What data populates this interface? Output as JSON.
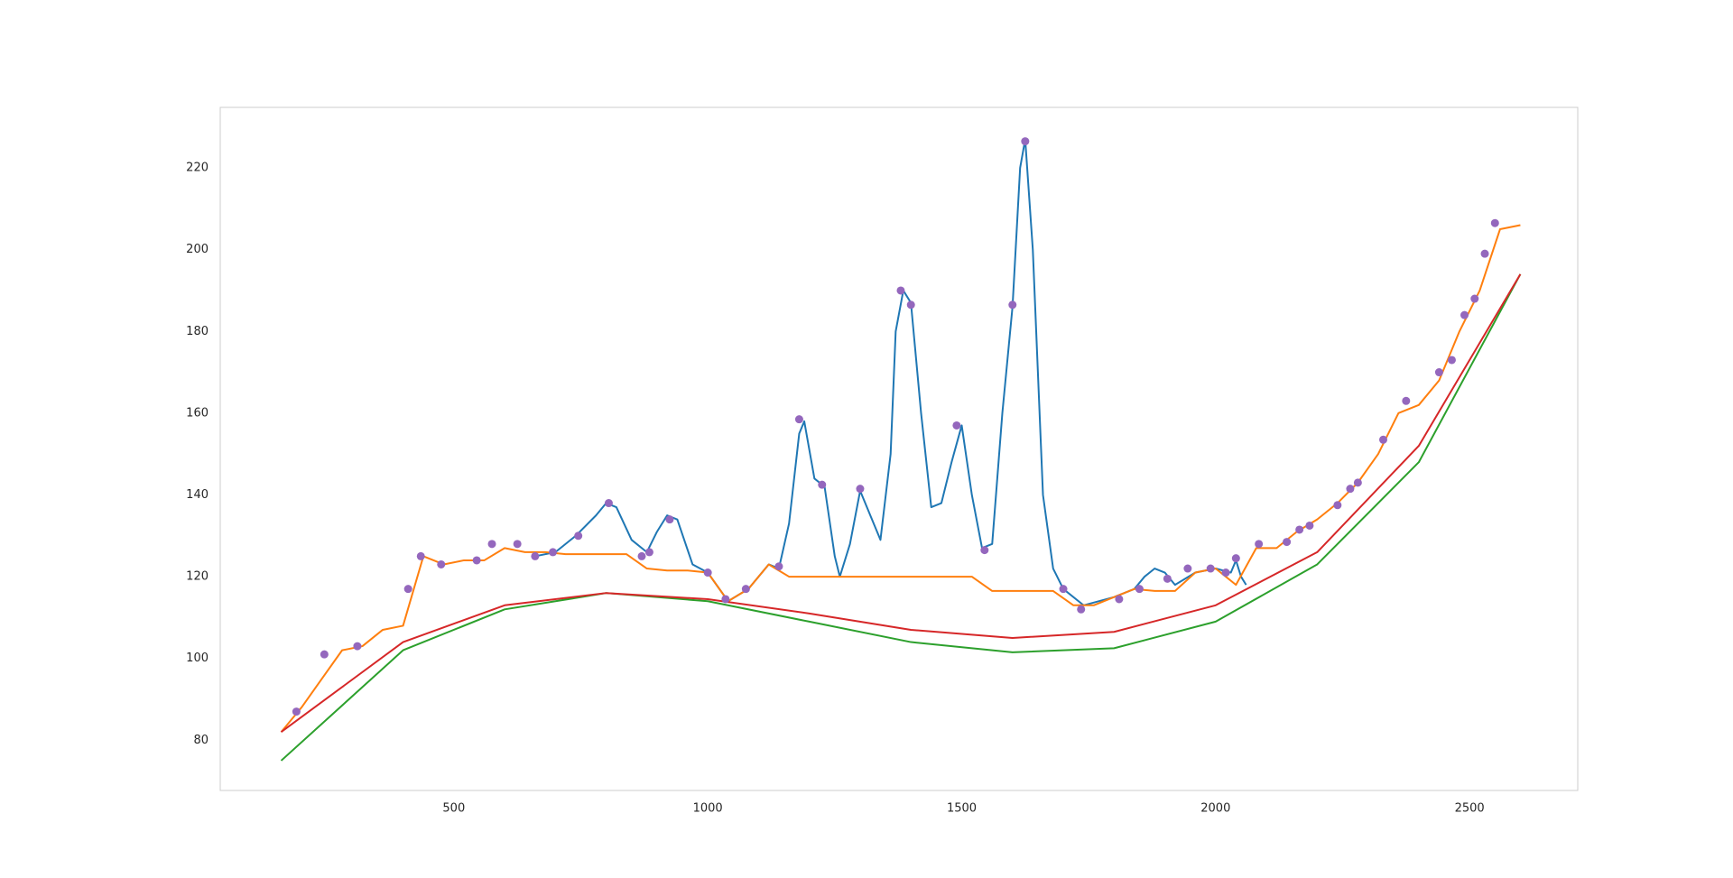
{
  "chart_data": {
    "type": "line",
    "xlim": [
      40,
      2713
    ],
    "ylim": [
      67.7,
      234.8
    ],
    "xticks": [
      500,
      1000,
      1500,
      2000,
      2500
    ],
    "yticks": [
      80,
      100,
      120,
      140,
      160,
      180,
      200,
      220
    ],
    "grid": false,
    "series": [
      {
        "color": "#1f77b4",
        "x": [
          660,
          700,
          740,
          780,
          800,
          820,
          850,
          880,
          900,
          920,
          940,
          970,
          1000,
          1040,
          1080,
          1120,
          1140,
          1160,
          1180,
          1190,
          1210,
          1230,
          1250,
          1260,
          1280,
          1300,
          1320,
          1340,
          1360,
          1370,
          1385,
          1400,
          1420,
          1440,
          1460,
          1480,
          1500,
          1520,
          1540,
          1560,
          1580,
          1600,
          1615,
          1625,
          1640,
          1660,
          1680,
          1700,
          1740,
          1800,
          1840,
          1860,
          1880,
          1900,
          1920,
          1960,
          2000,
          2030,
          2040,
          2050,
          2060
        ],
        "values": [
          125,
          126,
          130,
          135,
          138,
          137,
          129,
          126,
          131,
          135,
          134,
          123,
          121,
          114,
          117,
          123,
          122,
          133,
          155,
          158,
          144,
          142,
          125,
          120,
          128,
          141,
          135,
          129,
          150,
          180,
          190,
          187,
          160,
          137,
          138,
          148,
          157,
          140,
          127,
          128,
          160,
          186,
          220,
          227,
          200,
          140,
          122,
          117,
          113,
          115,
          117,
          120,
          122,
          121,
          118,
          121,
          122,
          121,
          124,
          120,
          118
        ]
      },
      {
        "color": "#ff7f0e",
        "x": [
          160,
          200,
          240,
          280,
          320,
          360,
          400,
          440,
          480,
          520,
          560,
          600,
          640,
          680,
          720,
          760,
          800,
          840,
          880,
          920,
          960,
          1000,
          1040,
          1080,
          1120,
          1160,
          1200,
          1240,
          1280,
          1320,
          1360,
          1400,
          1440,
          1480,
          1520,
          1560,
          1600,
          1640,
          1680,
          1720,
          1760,
          1800,
          1840,
          1880,
          1920,
          1960,
          2000,
          2040,
          2080,
          2120,
          2160,
          2200,
          2240,
          2280,
          2320,
          2360,
          2400,
          2440,
          2480,
          2520,
          2560,
          2600
        ],
        "values": [
          82,
          88,
          95,
          102,
          103,
          107,
          108,
          125,
          123,
          124,
          124,
          127,
          126,
          126,
          125.5,
          125.5,
          125.5,
          125.5,
          122,
          121.5,
          121.5,
          121,
          114,
          117,
          123,
          120,
          120,
          120,
          120,
          120,
          120,
          120,
          120,
          120,
          120,
          116.5,
          116.5,
          116.5,
          116.5,
          113,
          113,
          115,
          117,
          116.5,
          116.5,
          121,
          122,
          118,
          127,
          127,
          131,
          134,
          138,
          143,
          150,
          160,
          162,
          168,
          180,
          190,
          205,
          206
        ]
      },
      {
        "color": "#2ca02c",
        "x": [
          160,
          400,
          600,
          800,
          1000,
          1200,
          1400,
          1600,
          1800,
          2000,
          2200,
          2400,
          2600
        ],
        "values": [
          75,
          102,
          112,
          116,
          114,
          109,
          104,
          101.5,
          102.5,
          109,
          123,
          148,
          194
        ]
      },
      {
        "color": "#d62728",
        "x": [
          160,
          400,
          600,
          800,
          1000,
          1200,
          1400,
          1600,
          1800,
          2000,
          2200,
          2400,
          2600
        ],
        "values": [
          82,
          104,
          113,
          116,
          114.5,
          111,
          107,
          105,
          106.5,
          113,
          126,
          152,
          194
        ]
      },
      {
        "color": "#9467bd",
        "marker": true,
        "x": [
          190,
          245,
          310,
          410,
          435,
          475,
          545,
          575,
          625,
          660,
          695,
          745,
          805,
          870,
          885,
          925,
          1000,
          1035,
          1075,
          1140,
          1180,
          1225,
          1300,
          1380,
          1400,
          1490,
          1545,
          1600,
          1625,
          1700,
          1735,
          1810,
          1850,
          1905,
          1945,
          1990,
          2020,
          2040,
          2085,
          2140,
          2165,
          2185,
          2240,
          2265,
          2280,
          2330,
          2375,
          2440,
          2465,
          2490,
          2510,
          2530,
          2550
        ],
        "values": [
          87,
          101,
          103,
          117,
          125,
          123,
          124,
          128,
          128,
          125,
          126,
          130,
          138,
          125,
          126,
          134,
          121,
          114.5,
          117,
          122.5,
          158.5,
          142.5,
          141.5,
          190,
          186.5,
          157,
          126.5,
          186.5,
          226.5,
          117,
          112,
          114.5,
          117,
          119.5,
          122,
          122,
          121,
          124.5,
          128,
          128.5,
          131.5,
          132.5,
          137.5,
          141.5,
          143,
          153.5,
          163,
          170,
          173,
          184,
          188,
          199,
          206.5
        ]
      }
    ]
  }
}
